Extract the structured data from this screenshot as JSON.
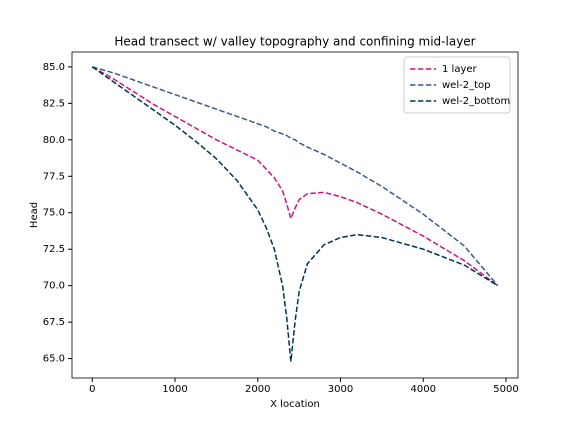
{
  "chart_data": {
    "type": "line",
    "title": "Head transect w/ valley topography and confining mid-layer",
    "xlabel": "X location",
    "ylabel": "Head",
    "x": [
      0,
      250,
      500,
      750,
      1000,
      1250,
      1500,
      1750,
      2000,
      2100,
      2200,
      2300,
      2350,
      2400,
      2450,
      2500,
      2600,
      2800,
      3000,
      3200,
      3500,
      4000,
      4500,
      4900
    ],
    "series": [
      {
        "name": "1 layer",
        "color": "#c71585",
        "values": [
          85,
          84.2,
          83.3,
          82.4,
          81.6,
          80.8,
          80.0,
          79.3,
          78.6,
          78.0,
          77.4,
          76.5,
          75.6,
          74.6,
          75.3,
          75.9,
          76.3,
          76.4,
          76.1,
          75.7,
          74.9,
          73.4,
          71.7,
          70.0
        ]
      },
      {
        "name": "wel-2_top",
        "color": "#3a5a8c",
        "values": [
          85,
          84.6,
          84.1,
          83.6,
          83.1,
          82.6,
          82.1,
          81.6,
          81.1,
          80.9,
          80.6,
          80.4,
          80.3,
          80.1,
          80.0,
          79.8,
          79.5,
          79.0,
          78.4,
          77.8,
          76.8,
          74.9,
          72.7,
          70.0
        ]
      },
      {
        "name": "wel-2_bottom",
        "color": "#00334d",
        "values": [
          85,
          84.0,
          83.0,
          82.0,
          81.0,
          79.9,
          78.7,
          77.2,
          75.2,
          74.0,
          72.5,
          70.0,
          67.8,
          64.8,
          67.5,
          69.6,
          71.5,
          72.8,
          73.3,
          73.5,
          73.3,
          72.5,
          71.4,
          70.0
        ]
      }
    ],
    "xlim": [
      -245,
      5145
    ],
    "ylim": [
      63.67,
      86.02
    ],
    "xticks": [
      0,
      1000,
      2000,
      3000,
      4000,
      5000
    ],
    "yticks": [
      {
        "value": 65,
        "label": "65.0"
      },
      67.5,
      {
        "value": 70,
        "label": "70.0"
      },
      72.5,
      {
        "value": 75,
        "label": "75.0"
      },
      77.5,
      {
        "value": 80,
        "label": "80.0"
      },
      82.5,
      {
        "value": 85,
        "label": "85.0"
      }
    ],
    "grid": false,
    "legend": "upper right",
    "dashed": true
  }
}
